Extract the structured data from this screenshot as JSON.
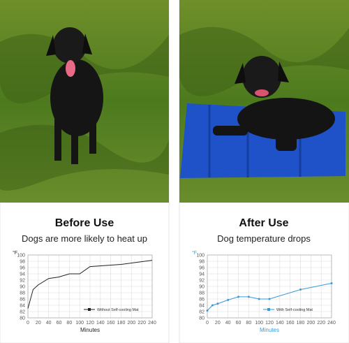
{
  "chart_data": [
    {
      "type": "line",
      "title": "Before Use",
      "subtitle": "Dogs are more likely to heat up",
      "ylabel": "°F",
      "xlabel": "Minutes",
      "x": [
        0,
        10,
        20,
        40,
        60,
        80,
        100,
        120,
        180,
        240
      ],
      "series": [
        {
          "name": "Without Self-cooling Mat",
          "color": "#222222",
          "values": [
            83,
            89,
            90.5,
            92.5,
            93,
            94,
            94,
            96.3,
            97,
            98.3
          ]
        }
      ],
      "xlim": [
        0,
        240
      ],
      "xticks": [
        0,
        20,
        40,
        60,
        80,
        100,
        120,
        140,
        160,
        180,
        200,
        220,
        240
      ],
      "ylim": [
        80,
        100
      ],
      "yticks": [
        80,
        82,
        84,
        86,
        88,
        90,
        92,
        94,
        96,
        98,
        100
      ],
      "grid": true,
      "markers": false
    },
    {
      "type": "line",
      "title": "After Use",
      "subtitle": "Dog temperature drops",
      "ylabel": "°F",
      "xlabel": "Minutes",
      "x": [
        0,
        10,
        20,
        40,
        60,
        80,
        100,
        120,
        180,
        240
      ],
      "series": [
        {
          "name": "With Self-cooling Mat",
          "color": "#3a9ad9",
          "values": [
            82.3,
            84,
            84.5,
            85.7,
            86.7,
            86.7,
            86,
            86,
            89,
            91
          ]
        }
      ],
      "xlim": [
        0,
        240
      ],
      "xticks": [
        0,
        20,
        40,
        60,
        80,
        100,
        120,
        140,
        160,
        180,
        200,
        220,
        240
      ],
      "ylim": [
        80,
        100
      ],
      "yticks": [
        80,
        82,
        84,
        86,
        88,
        90,
        92,
        94,
        96,
        98,
        100
      ],
      "grid": true,
      "markers": true
    }
  ]
}
